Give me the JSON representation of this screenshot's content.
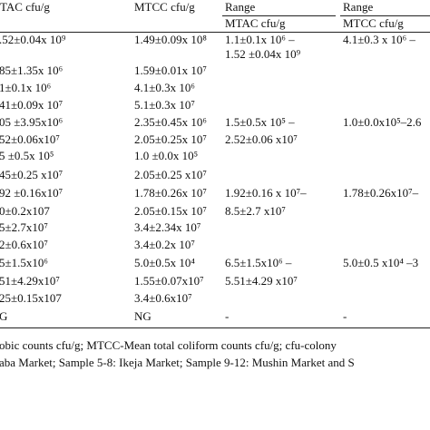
{
  "table": {
    "header": {
      "col1": "TAC cfu/g",
      "col2": "MTCC cfu/g",
      "col3": "Range",
      "col4": "Range",
      "sub3": "MTAC cfu/g",
      "sub4": "MTCC cfu/g"
    },
    "rows": [
      [
        ".52±0.04x 10⁹",
        "1.49±0.09x 10⁸",
        [
          "1.1±0.1x 10⁶ –",
          "1.52 ±0.04x 10⁹"
        ],
        [
          "4.1±0.3 x 10⁶ –"
        ]
      ],
      [
        "85±1.35x 10⁶",
        "1.59±0.01x 10⁷",
        [],
        []
      ],
      [
        "1±0.1x 10⁶",
        "4.1±0.3x 10⁶",
        [],
        []
      ],
      [
        "41±0.09x 10⁷",
        "5.1±0.3x 10⁷",
        [],
        []
      ],
      [
        "05 ±3.95x10⁶",
        "2.35±0.45x 10⁶",
        [
          "1.5±0.5x 10⁵ –",
          "2.52±0.06 x10⁷"
        ],
        [
          "1.0±0.0x10⁵–2.6"
        ]
      ],
      [
        "52±0.06x10⁷",
        "2.05±0.25x 10⁷",
        [],
        []
      ],
      [
        "5 ±0.5x 10⁵",
        "1.0 ±0.0x 10⁵",
        [],
        []
      ],
      [
        "45±0.25 x10⁷",
        "2.05±0.25 x10⁷",
        [],
        []
      ],
      [
        "92 ±0.16x10⁷",
        "1.78±0.26x 10⁷",
        [
          "1.92±0.16 x 10⁷–",
          "8.5±2.7 x10⁷"
        ],
        [
          "1.78±0.26x10⁷–"
        ]
      ],
      [
        "0±0.2x107",
        "2.05±0.15x 10⁷",
        [],
        []
      ],
      [
        "5±2.7x10⁷",
        "3.4±2.34x 10⁷",
        [],
        []
      ],
      [
        "2±0.6x10⁷",
        "3.4±0.2x 10⁷",
        [],
        []
      ],
      [
        "5±1.5x10⁶",
        "5.0±0.5x 10⁴",
        [
          "6.5±1.5x10⁶ –",
          "5.51±4.29 x10⁷"
        ],
        [
          "5.0±0.5 x10⁴ –3"
        ]
      ],
      [
        "51±4.29x10⁷",
        "1.55±0.07x10⁷",
        [],
        []
      ],
      [
        "25±0.15x107",
        "3.4±0.6x10⁷",
        [],
        []
      ],
      [
        "G",
        "NG",
        [
          "-"
        ],
        [
          "-"
        ]
      ]
    ],
    "footnote": [
      "obic counts cfu/g;     MTCC-Mean total coliform counts cfu/g; cfu-colony",
      "aba Market; Sample 5-8: Ikeja Market; Sample 9-12: Mushin Market and S"
    ]
  }
}
